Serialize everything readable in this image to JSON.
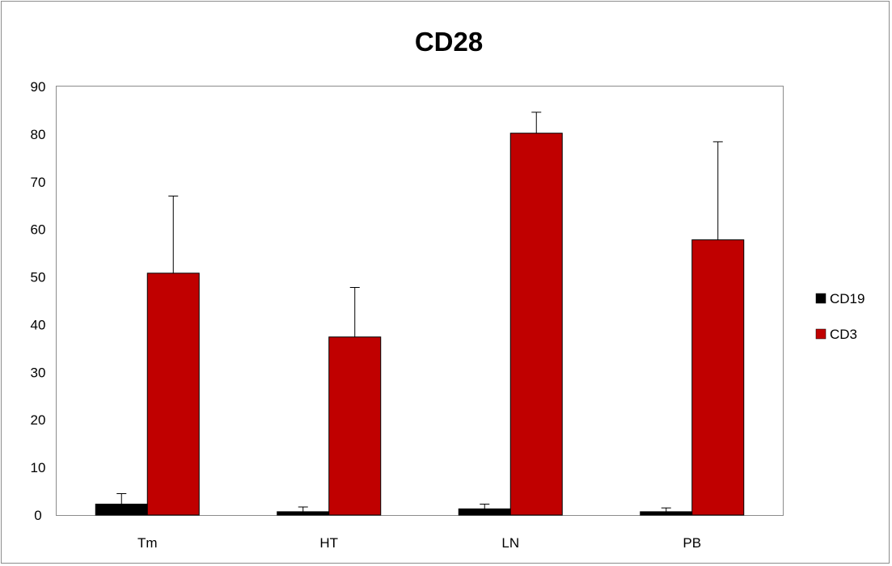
{
  "chart_data": {
    "type": "bar",
    "title": "CD28",
    "xlabel": "",
    "ylabel": "",
    "categories": [
      "Tm",
      "HT",
      "LN",
      "PB"
    ],
    "ylim": [
      0,
      90
    ],
    "yticks": [
      0,
      10,
      20,
      30,
      40,
      50,
      60,
      70,
      80,
      90
    ],
    "grid": false,
    "legend_position": "right",
    "series": [
      {
        "name": "CD19",
        "color": "#000000",
        "values": [
          2.3,
          0.7,
          1.3,
          0.7
        ],
        "errors": [
          2.2,
          1.0,
          1.0,
          0.8
        ]
      },
      {
        "name": "CD3",
        "color": "#c00000",
        "values": [
          50.8,
          37.4,
          80.2,
          57.8
        ],
        "errors": [
          16.2,
          10.4,
          4.4,
          20.6
        ]
      }
    ]
  }
}
